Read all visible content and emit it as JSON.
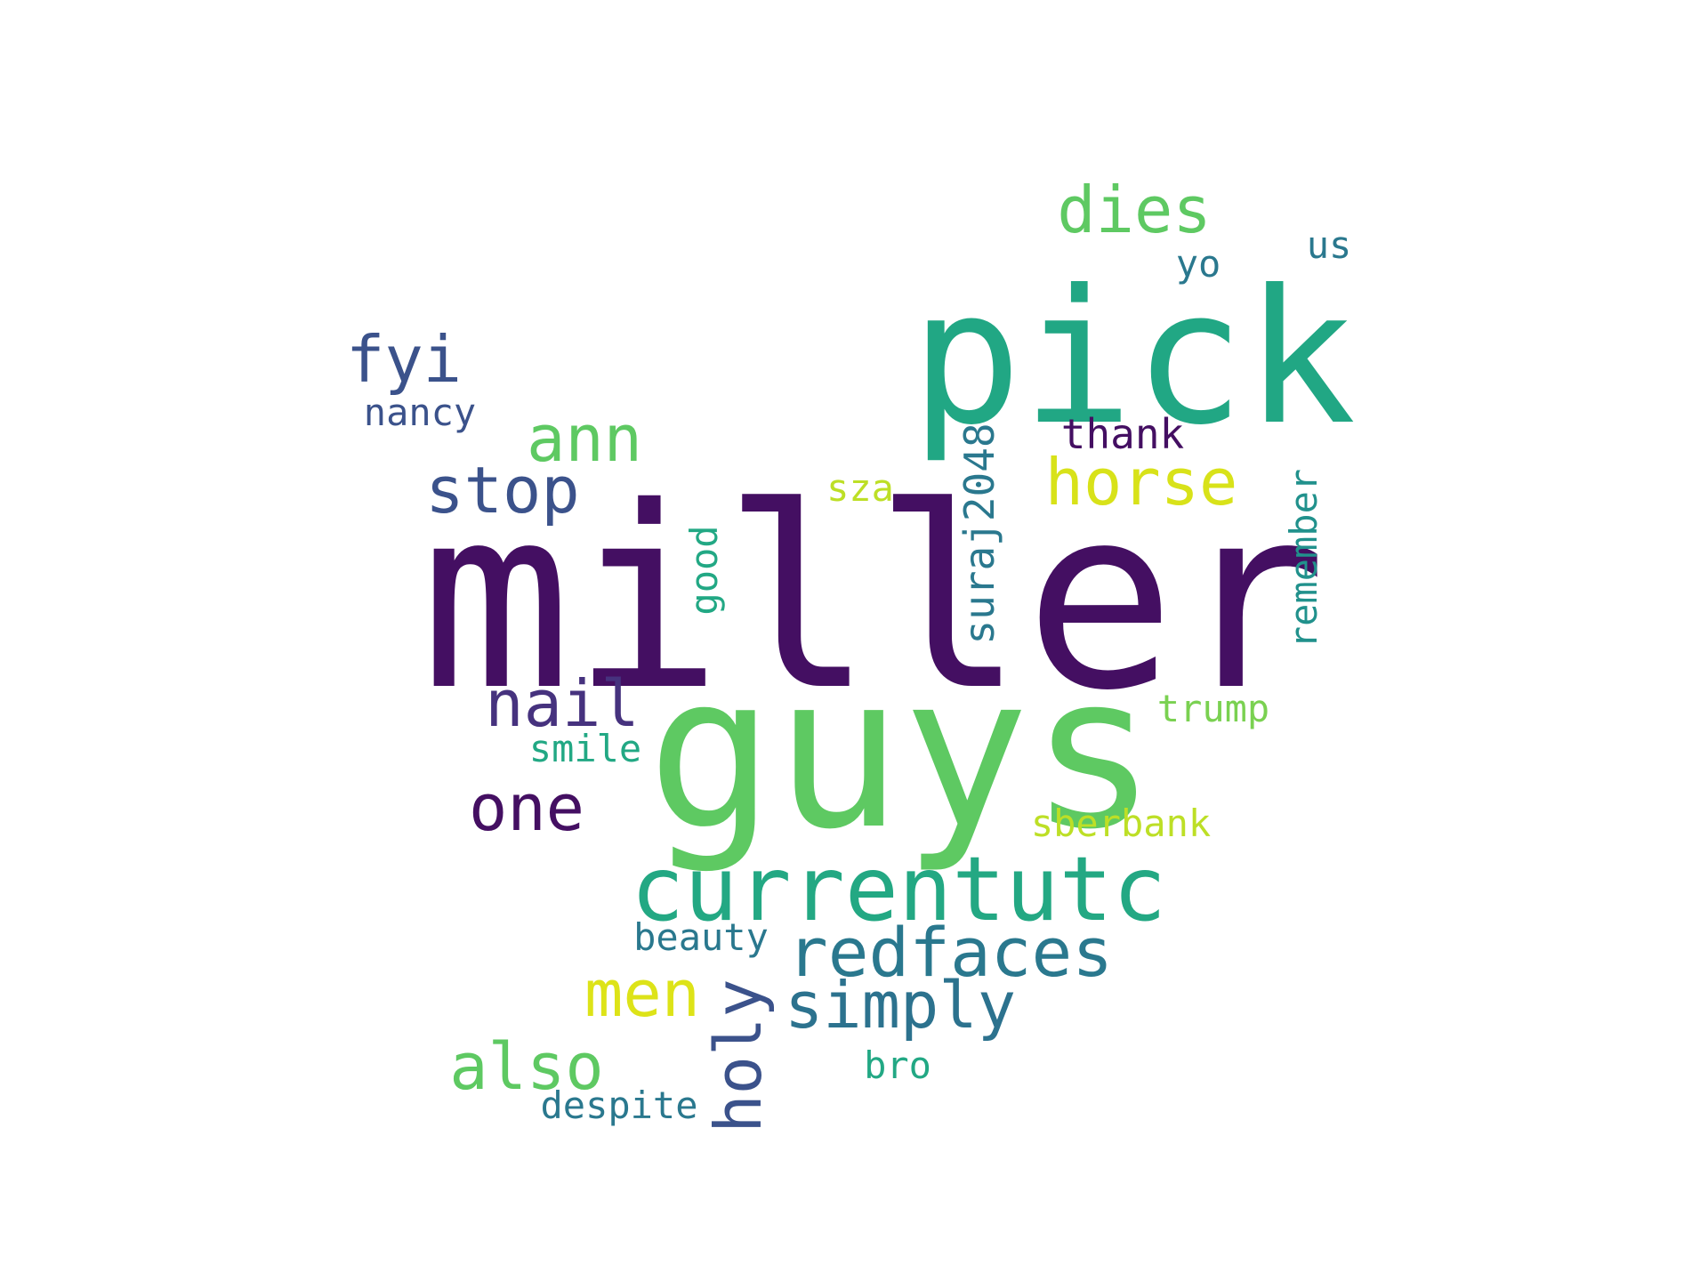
{
  "words": [
    {
      "id": "miller",
      "text": "miller",
      "color": "#440f62"
    },
    {
      "id": "guys",
      "text": "guys",
      "color": "#5ec962"
    },
    {
      "id": "pick",
      "text": "pick",
      "color": "#21a784"
    },
    {
      "id": "currentutc",
      "text": "currentutc",
      "color": "#23a883"
    },
    {
      "id": "redfaces",
      "text": "redfaces",
      "color": "#2a788e"
    },
    {
      "id": "horse",
      "text": "horse",
      "color": "#d8e219"
    },
    {
      "id": "stop",
      "text": "stop",
      "color": "#3b528b"
    },
    {
      "id": "ann",
      "text": "ann",
      "color": "#5ec962"
    },
    {
      "id": "dies",
      "text": "dies",
      "color": "#5ec962"
    },
    {
      "id": "fyi",
      "text": "fyi",
      "color": "#3b528b"
    },
    {
      "id": "nail",
      "text": "nail",
      "color": "#46327e"
    },
    {
      "id": "one",
      "text": "one",
      "color": "#440f62"
    },
    {
      "id": "simply",
      "text": "simply",
      "color": "#2c728e"
    },
    {
      "id": "men",
      "text": "men",
      "color": "#dde318"
    },
    {
      "id": "also",
      "text": "also",
      "color": "#5ec962"
    },
    {
      "id": "holy",
      "text": "holy",
      "color": "#3b528b"
    },
    {
      "id": "thank",
      "text": "thank",
      "color": "#440f62"
    },
    {
      "id": "sza",
      "text": "sza",
      "color": "#bddf26"
    },
    {
      "id": "suraj2048",
      "text": "suraj2048",
      "color": "#2a788e"
    },
    {
      "id": "remember",
      "text": "remember",
      "color": "#21918c"
    },
    {
      "id": "good",
      "text": "good",
      "color": "#22a884"
    },
    {
      "id": "trump",
      "text": "trump",
      "color": "#7ad151"
    },
    {
      "id": "smile",
      "text": "smile",
      "color": "#22a884"
    },
    {
      "id": "sberbank",
      "text": "sberbank",
      "color": "#bddf26"
    },
    {
      "id": "beauty",
      "text": "beauty",
      "color": "#2a788e"
    },
    {
      "id": "bro",
      "text": "bro",
      "color": "#22a884"
    },
    {
      "id": "despite",
      "text": "despite",
      "color": "#2a788e"
    },
    {
      "id": "nancy",
      "text": "nancy",
      "color": "#3b528b"
    },
    {
      "id": "yo",
      "text": "yo",
      "color": "#2a788e"
    },
    {
      "id": "us",
      "text": "us",
      "color": "#2a788e"
    }
  ]
}
